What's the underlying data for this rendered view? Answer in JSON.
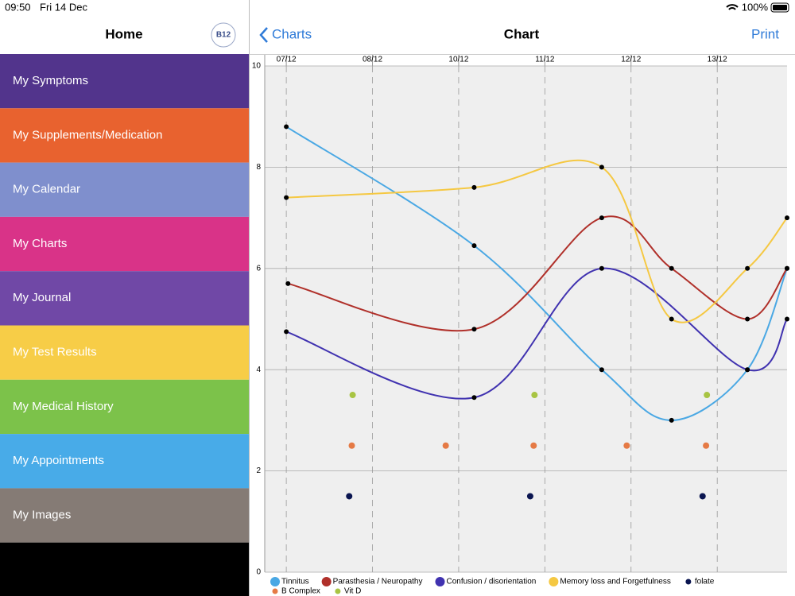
{
  "status_bar": {
    "time": "09:50",
    "date": "Fri 14 Dec",
    "battery": "100%"
  },
  "sidebar": {
    "title": "Home",
    "logo": "B12",
    "items": [
      {
        "label": "My Symptoms",
        "color": "#52348c"
      },
      {
        "label": "My Supplements/Medication",
        "color": "#e8622f"
      },
      {
        "label": "My Calendar",
        "color": "#7f8fcd"
      },
      {
        "label": "My Charts",
        "color": "#d93388"
      },
      {
        "label": "My Journal",
        "color": "#7048a6"
      },
      {
        "label": "My Test Results",
        "color": "#f7cd47"
      },
      {
        "label": "My Medical History",
        "color": "#7cc24a"
      },
      {
        "label": "My Appointments",
        "color": "#48abe8"
      },
      {
        "label": "My Images",
        "color": "#857b75"
      }
    ]
  },
  "nav": {
    "back": "Charts",
    "title": "Chart",
    "action": "Print"
  },
  "chart_data": {
    "type": "line",
    "xlim": [
      -0.25,
      5.81
    ],
    "ylim": [
      0,
      10
    ],
    "xticks": [
      {
        "value": 0,
        "label": "07/12"
      },
      {
        "value": 1,
        "label": "08/12"
      },
      {
        "value": 2,
        "label": "10/12"
      },
      {
        "value": 3,
        "label": "11/12"
      },
      {
        "value": 4,
        "label": "12/12"
      },
      {
        "value": 5,
        "label": "13/12"
      }
    ],
    "yticks": [
      0,
      2,
      4,
      6,
      8,
      10
    ],
    "grid": true,
    "legend": "bottom",
    "series": [
      {
        "name": "Tinnitus",
        "color": "#4aa8e4",
        "mode": "lines+markers",
        "x": [
          0,
          2.18,
          3.66,
          4.47,
          5.35,
          5.81
        ],
        "values": [
          8.8,
          6.45,
          4.0,
          3.0,
          4.0,
          6.0
        ]
      },
      {
        "name": "Parasthesia / Neuropathy",
        "color": "#b0302a",
        "mode": "lines+markers",
        "x": [
          0.02,
          2.18,
          3.66,
          4.47,
          5.35,
          5.81
        ],
        "values": [
          5.7,
          4.8,
          7.0,
          6.0,
          5.0,
          6.0
        ]
      },
      {
        "name": "Confusion / disorientation",
        "color": "#4032b0",
        "mode": "lines+markers",
        "x": [
          0,
          2.18,
          3.66,
          5.35,
          5.81
        ],
        "values": [
          4.75,
          3.45,
          6.0,
          4.0,
          5.0
        ]
      },
      {
        "name": "Memory loss and Forgetfulness",
        "color": "#f5c842",
        "mode": "lines+markers",
        "x": [
          0,
          2.18,
          3.66,
          4.47,
          5.35,
          5.81
        ],
        "values": [
          7.4,
          7.6,
          8.0,
          5.0,
          6.0,
          7.0
        ]
      },
      {
        "name": "folate",
        "color": "#0a1550",
        "mode": "markers",
        "x": [
          0.73,
          2.83,
          4.83
        ],
        "values": [
          1.5,
          1.5,
          1.5
        ]
      },
      {
        "name": "B Complex",
        "color": "#e57a45",
        "mode": "markers",
        "x": [
          0.76,
          1.85,
          2.87,
          3.95,
          4.87
        ],
        "values": [
          2.5,
          2.5,
          2.5,
          2.5,
          2.5
        ]
      },
      {
        "name": "Vit D",
        "color": "#a8c443",
        "mode": "markers",
        "x": [
          0.77,
          2.88,
          4.88
        ],
        "values": [
          3.5,
          3.5,
          3.5
        ]
      }
    ]
  }
}
